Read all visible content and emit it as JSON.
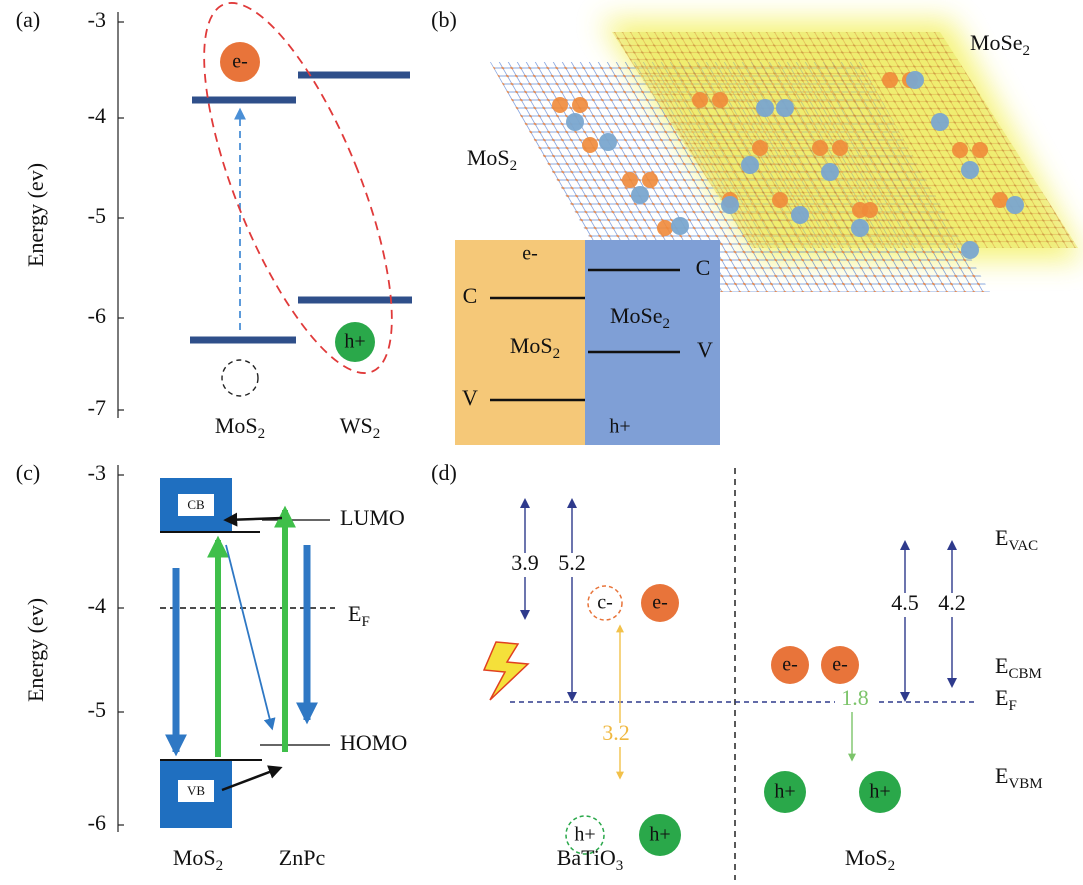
{
  "panel_a": {
    "label": "(a)",
    "y_axis_title": "Energy (ev)",
    "y_ticks": [
      "-3",
      "-4",
      "-5",
      "-6",
      "-7"
    ],
    "electron": "e-",
    "hole": "h+",
    "materials": [
      {
        "base": "MoS",
        "sub": "2"
      },
      {
        "base": "WS",
        "sub": "2"
      }
    ]
  },
  "panel_b": {
    "label": "(b)",
    "sheets": [
      {
        "base": "MoSe",
        "sub": "2"
      },
      {
        "base": "MoS",
        "sub": "2"
      }
    ],
    "inset": {
      "electron": "e-",
      "hole": "h+",
      "levels": [
        "C",
        "C",
        "V",
        "V"
      ],
      "materials": [
        {
          "base": "MoS",
          "sub": "2"
        },
        {
          "base": "MoSe",
          "sub": "2"
        }
      ]
    }
  },
  "panel_c": {
    "label": "(c)",
    "y_axis_title": "Energy (ev)",
    "y_ticks": [
      "-3",
      "-4",
      "-5",
      "-6"
    ],
    "boxes": [
      "CB",
      "VB"
    ],
    "lumo": "LUMO",
    "homo": "HOMO",
    "fermi": {
      "base": "E",
      "sub": "F"
    },
    "materials": [
      {
        "base": "MoS",
        "sub": "2"
      },
      {
        "base": "ZnPc",
        "sub": ""
      }
    ]
  },
  "panel_d": {
    "label": "(d)",
    "gaps": [
      "3.9",
      "5.2",
      "4.5",
      "4.2",
      "3.2",
      "1.8"
    ],
    "levels": [
      {
        "base": "E",
        "sub": "VAC"
      },
      {
        "base": "E",
        "sub": "CBM"
      },
      {
        "base": "E",
        "sub": "F"
      },
      {
        "base": "E",
        "sub": "VBM"
      }
    ],
    "charges": [
      "c-",
      "e-",
      "e-",
      "e-",
      "h+",
      "h+",
      "h+",
      "h+"
    ],
    "materials": [
      {
        "base": "BaTiO",
        "sub": "3"
      },
      {
        "base": "MoS",
        "sub": "2"
      }
    ]
  }
}
